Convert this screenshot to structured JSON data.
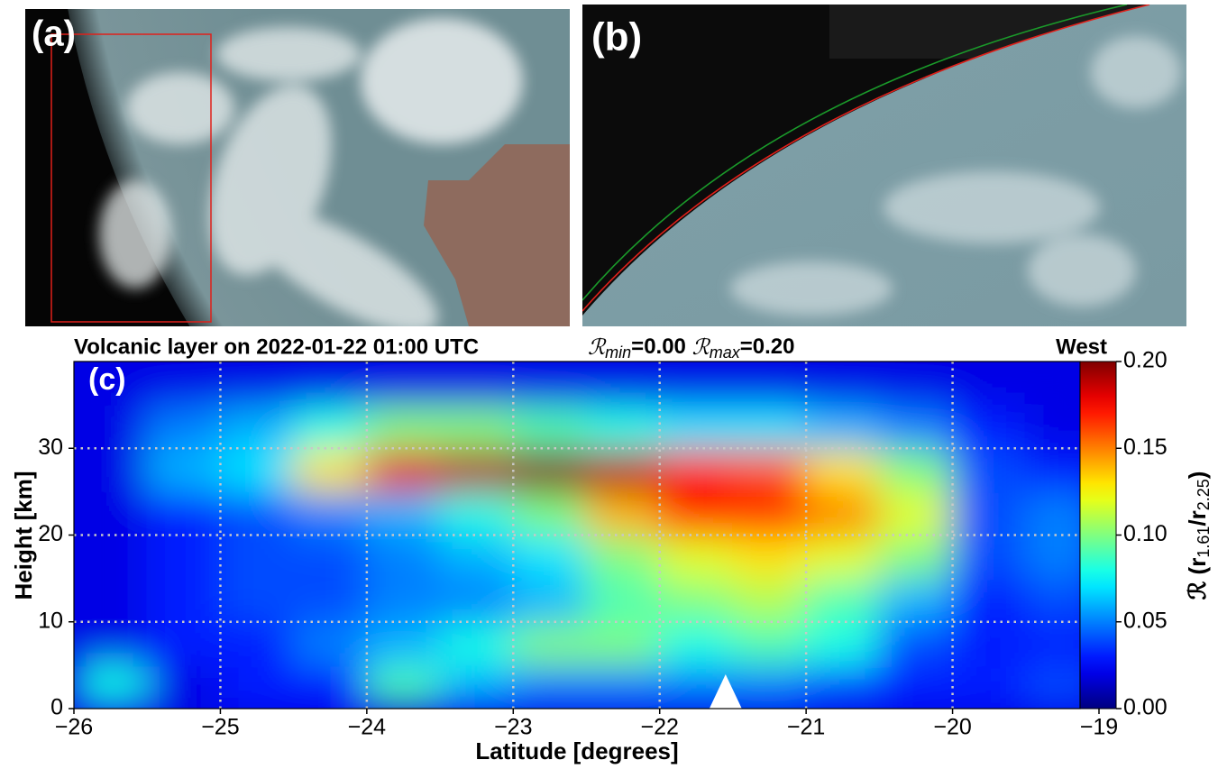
{
  "chart_data": {
    "type": "heatmap",
    "panel_labels": [
      "(a)",
      "(b)",
      "(c)"
    ],
    "title": "Volcanic layer on 2022-01-22 01:00 UTC",
    "range_annotation": [
      {
        "symbol": "ℛ",
        "sub": "min",
        "text": "=0.00"
      },
      {
        "symbol": "ℛ",
        "sub": "max",
        "text": "=0.20"
      }
    ],
    "corner_label": "West",
    "xlabel": "Latitude [degrees]",
    "ylabel": "Height [km]",
    "colorbar_label": {
      "prefix": "ℛ (r",
      "sub1": "1.61",
      "mid": "/r",
      "sub2": "2.25",
      "suffix": ")"
    },
    "colormap": "jet",
    "grid": true,
    "marker_x": -21.55,
    "xlim": [
      -26,
      -19
    ],
    "xticks": [
      {
        "value": -26,
        "label": "−26"
      },
      {
        "value": -25,
        "label": "−25"
      },
      {
        "value": -24,
        "label": "−24"
      },
      {
        "value": -23,
        "label": "−23"
      },
      {
        "value": -22,
        "label": "−22"
      },
      {
        "value": -21,
        "label": "−21"
      },
      {
        "value": -20,
        "label": "−20"
      },
      {
        "value": -19,
        "label": "−19"
      }
    ],
    "ylim": [
      0,
      40
    ],
    "yticks": [
      0,
      10,
      20,
      30
    ],
    "clim": [
      0,
      0.2
    ],
    "cticks": [
      {
        "value": 0,
        "label": "0.00"
      },
      {
        "value": 0.05,
        "label": "0.05"
      },
      {
        "value": 0.1,
        "label": "0.10"
      },
      {
        "value": 0.15,
        "label": "0.15"
      },
      {
        "value": 0.2,
        "label": "0.20"
      }
    ],
    "x": [
      -25.75,
      -25.25,
      -24.75,
      -24.25,
      -23.75,
      -23.25,
      -22.75,
      -22.25,
      -21.75,
      -21.25,
      -20.75,
      -20.25,
      -19.75,
      -19.25
    ],
    "y": [
      2.5,
      7.5,
      12.5,
      17.5,
      22.5,
      27.5,
      32.5,
      37.5
    ],
    "z": [
      [
        0.08,
        0.02,
        0.03,
        0.03,
        0.09,
        0.06,
        0.05,
        0.05,
        0.05,
        0.05,
        0.04,
        0.03,
        0.03,
        0.04
      ],
      [
        0.02,
        0.03,
        0.03,
        0.05,
        0.06,
        0.08,
        0.1,
        0.1,
        0.08,
        0.09,
        0.08,
        0.04,
        0.03,
        0.03
      ],
      [
        0.02,
        0.03,
        0.04,
        0.04,
        0.05,
        0.05,
        0.06,
        0.09,
        0.1,
        0.11,
        0.09,
        0.06,
        0.03,
        0.04
      ],
      [
        0.02,
        0.03,
        0.04,
        0.04,
        0.05,
        0.06,
        0.07,
        0.1,
        0.12,
        0.13,
        0.12,
        0.1,
        0.04,
        0.05
      ],
      [
        0.02,
        0.03,
        0.04,
        0.05,
        0.06,
        0.08,
        0.1,
        0.14,
        0.17,
        0.17,
        0.15,
        0.12,
        0.04,
        0.05
      ],
      [
        0.02,
        0.06,
        0.07,
        0.13,
        0.18,
        0.19,
        0.2,
        0.19,
        0.17,
        0.16,
        0.13,
        0.1,
        0.04,
        0.03
      ],
      [
        0.02,
        0.05,
        0.06,
        0.08,
        0.1,
        0.1,
        0.09,
        0.08,
        0.07,
        0.07,
        0.06,
        0.05,
        0.03,
        0.02
      ],
      [
        0.02,
        0.02,
        0.02,
        0.02,
        0.02,
        0.02,
        0.02,
        0.02,
        0.02,
        0.02,
        0.02,
        0.02,
        0.02,
        0.02
      ]
    ]
  }
}
